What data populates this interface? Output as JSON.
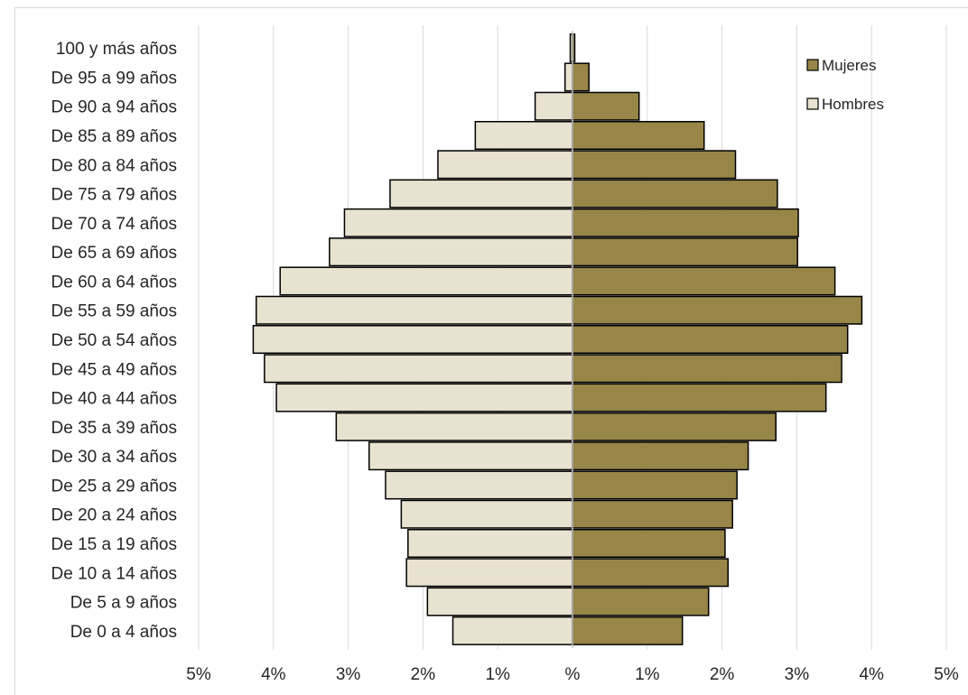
{
  "chart_data": {
    "type": "bar",
    "orientation": "horizontal-population-pyramid",
    "categories": [
      "De 0 a 4 años",
      "De 5 a 9 años",
      "De 10 a 14 años",
      "De 15 a 19 años",
      "De 20 a 24 años",
      "De 25 a 29 años",
      "De 30 a 34 años",
      "De 35 a 39 años",
      "De 40 a 44 años",
      "De 45 a 49 años",
      "De 50 a 54 años",
      "De 55 a 59 años",
      "De 60 a 64 años",
      "De 65 a 69 años",
      "De 70 a 74 años",
      "De 75 a 79 años",
      "De 80 a 84 años",
      "De 85 a 89 años",
      "De 90 a 94 años",
      "De 95 a 99 años",
      "100 y más años"
    ],
    "series": [
      {
        "name": "Hombres",
        "color": "#e8e2d0",
        "values": [
          1.6,
          1.94,
          2.22,
          2.2,
          2.29,
          2.5,
          2.72,
          3.16,
          3.96,
          4.12,
          4.27,
          4.23,
          3.91,
          3.25,
          3.05,
          2.44,
          1.8,
          1.3,
          0.5,
          0.1,
          0.03
        ]
      },
      {
        "name": "Mujeres",
        "color": "#978647",
        "values": [
          1.47,
          1.82,
          2.08,
          2.04,
          2.14,
          2.2,
          2.35,
          2.72,
          3.39,
          3.6,
          3.68,
          3.87,
          3.51,
          3.01,
          3.02,
          2.74,
          2.18,
          1.76,
          0.89,
          0.22,
          0.03
        ]
      }
    ],
    "xlim": [
      -5,
      5
    ],
    "tick_labels": [
      "5%",
      "4%",
      "3%",
      "2%",
      "1%",
      "%",
      "1%",
      "2%",
      "3%",
      "4%",
      "5%"
    ],
    "grid": "vertical",
    "legend_position": "top-right"
  }
}
